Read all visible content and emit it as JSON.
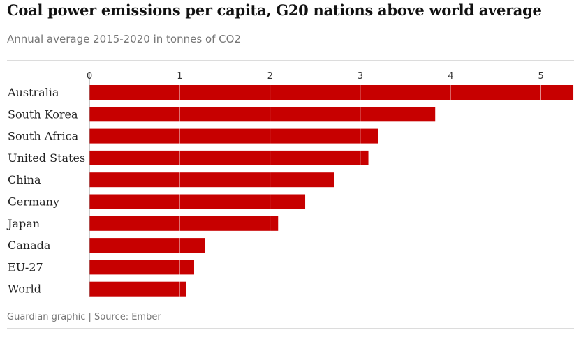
{
  "chart_data": {
    "type": "bar",
    "orientation": "horizontal",
    "title": "Coal power emissions per capita, G20 nations above world average",
    "subtitle": "Annual average 2015-2020 in tonnes of CO2",
    "categories": [
      "Australia",
      "South Korea",
      "South Africa",
      "United States",
      "China",
      "Germany",
      "Japan",
      "Canada",
      "EU-27",
      "World"
    ],
    "values": [
      5.36,
      3.83,
      3.2,
      3.09,
      2.71,
      2.39,
      2.09,
      1.28,
      1.16,
      1.07
    ],
    "xlim": [
      0,
      5.36
    ],
    "xticks": [
      "0",
      "1",
      "2",
      "3",
      "4",
      "5"
    ],
    "xlabel": "",
    "ylabel": "",
    "grid": true,
    "bar_color": "#c70000",
    "source": "Guardian graphic | Source: Ember"
  }
}
